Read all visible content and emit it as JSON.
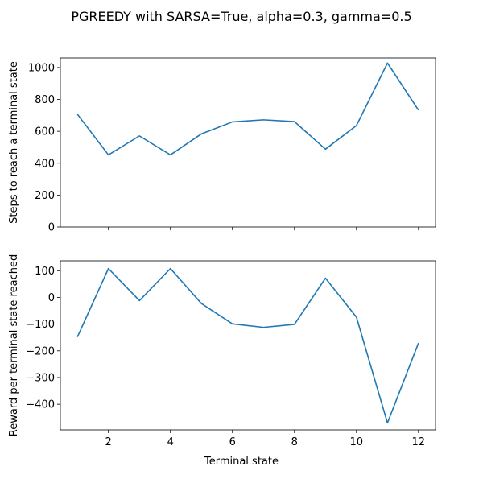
{
  "figure": {
    "title": "PGREEDY with SARSA=True, alpha=0.3, gamma=0.5",
    "xlabel": "Terminal state"
  },
  "colors": {
    "line": "#1f77b4"
  },
  "chart_data": [
    {
      "type": "line",
      "name": "steps",
      "x": [
        1,
        2,
        3,
        4,
        5,
        6,
        7,
        8,
        9,
        10,
        11,
        12
      ],
      "values": [
        707,
        452,
        571,
        452,
        584,
        659,
        672,
        661,
        488,
        636,
        1028,
        733
      ],
      "xlim": [
        0.45,
        12.55
      ],
      "ylim": [
        0,
        1060
      ],
      "xticks": [
        2,
        4,
        6,
        8,
        10,
        12
      ],
      "yticks": [
        0,
        200,
        400,
        600,
        800,
        1000
      ],
      "ylabel": "Steps to reach a terminal state",
      "show_xtick_labels": false
    },
    {
      "type": "line",
      "name": "reward",
      "x": [
        1,
        2,
        3,
        4,
        5,
        6,
        7,
        8,
        9,
        10,
        11,
        12
      ],
      "values": [
        -148,
        108,
        -12,
        108,
        -23,
        -99,
        -112,
        -101,
        72,
        -74,
        -470,
        -171
      ],
      "xlim": [
        0.45,
        12.55
      ],
      "ylim": [
        -496,
        137
      ],
      "xticks": [
        2,
        4,
        6,
        8,
        10,
        12
      ],
      "yticks": [
        -400,
        -300,
        -200,
        -100,
        0,
        100
      ],
      "ylabel": "Reward per terminal state reached",
      "show_xtick_labels": true
    }
  ]
}
